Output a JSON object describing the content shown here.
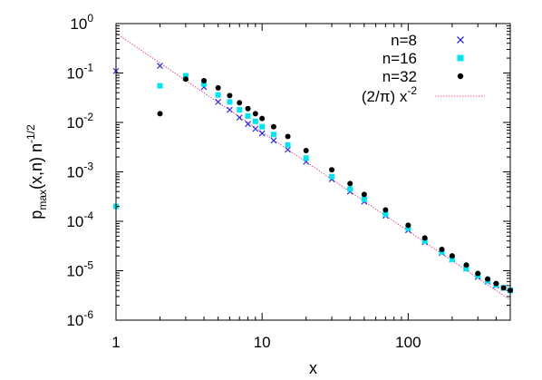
{
  "chart_data": {
    "type": "scatter",
    "xscale": "log",
    "yscale": "log",
    "xlim": [
      1,
      500
    ],
    "ylim": [
      1e-06,
      1
    ],
    "grid": false,
    "legend_position": "top-right",
    "xlabel": "x",
    "ylabel": {
      "prefix": "p",
      "sub": "max",
      "mid": "(x,n) n",
      "sup": "-1/2"
    },
    "x_ticks": [
      {
        "value": 1,
        "label": "1"
      },
      {
        "value": 10,
        "label": "10"
      },
      {
        "value": 100,
        "label": "100"
      }
    ],
    "y_ticks": [
      {
        "value": 1,
        "base": "10",
        "exp": "0"
      },
      {
        "value": 0.1,
        "base": "10",
        "exp": "-1"
      },
      {
        "value": 0.01,
        "base": "10",
        "exp": "-2"
      },
      {
        "value": 0.001,
        "base": "10",
        "exp": "-3"
      },
      {
        "value": 0.0001,
        "base": "10",
        "exp": "-4"
      },
      {
        "value": 1e-05,
        "base": "10",
        "exp": "-5"
      },
      {
        "value": 1e-06,
        "base": "10",
        "exp": "-6"
      }
    ],
    "series": [
      {
        "name": "n=8",
        "marker": "x",
        "color": "#2b2bd6",
        "points": [
          [
            1,
            0.11
          ],
          [
            2,
            0.14
          ],
          [
            3,
            0.08
          ],
          [
            4,
            0.052
          ],
          [
            5,
            0.026
          ],
          [
            6,
            0.018
          ],
          [
            7,
            0.0125
          ],
          [
            8,
            0.0093
          ],
          [
            9,
            0.0074
          ],
          [
            10,
            0.006
          ],
          [
            12,
            0.0043
          ],
          [
            15,
            0.0028
          ],
          [
            20,
            0.0016
          ],
          [
            30,
            0.00071
          ],
          [
            40,
            0.0004
          ],
          [
            50,
            0.00025
          ],
          [
            70,
            0.00013
          ],
          [
            100,
            6.6e-05
          ],
          [
            130,
            3.8e-05
          ],
          [
            170,
            2.3e-05
          ],
          [
            200,
            1.7e-05
          ],
          [
            250,
            1.1e-05
          ],
          [
            300,
            7.5e-06
          ],
          [
            350,
            6e-06
          ],
          [
            400,
            5e-06
          ],
          [
            450,
            4.5e-06
          ],
          [
            500,
            4e-06
          ]
        ]
      },
      {
        "name": "n=16",
        "marker": "square",
        "color": "#00e5ee",
        "points": [
          [
            1,
            0.0002
          ],
          [
            2,
            0.055
          ],
          [
            3,
            0.088
          ],
          [
            4,
            0.06
          ],
          [
            5,
            0.036
          ],
          [
            6,
            0.026
          ],
          [
            7,
            0.018
          ],
          [
            8,
            0.0135
          ],
          [
            9,
            0.0105
          ],
          [
            10,
            0.0082
          ],
          [
            12,
            0.0057
          ],
          [
            15,
            0.0035
          ],
          [
            20,
            0.0019
          ],
          [
            30,
            0.0008
          ],
          [
            40,
            0.00045
          ],
          [
            50,
            0.00028
          ],
          [
            70,
            0.00014
          ],
          [
            100,
            7.2e-05
          ],
          [
            130,
            4e-05
          ],
          [
            170,
            2.4e-05
          ],
          [
            200,
            1.7e-05
          ],
          [
            250,
            1.1e-05
          ],
          [
            300,
            8e-06
          ],
          [
            350,
            6.2e-06
          ],
          [
            400,
            5.2e-06
          ],
          [
            450,
            4.5e-06
          ],
          [
            500,
            4e-06
          ]
        ]
      },
      {
        "name": "n=32",
        "marker": "circle",
        "color": "#000000",
        "points": [
          [
            2,
            0.015
          ],
          [
            3,
            0.075
          ],
          [
            4,
            0.07
          ],
          [
            5,
            0.05
          ],
          [
            6,
            0.035
          ],
          [
            7,
            0.025
          ],
          [
            8,
            0.019
          ],
          [
            9,
            0.015
          ],
          [
            10,
            0.012
          ],
          [
            12,
            0.0082
          ],
          [
            15,
            0.0052
          ],
          [
            20,
            0.0027
          ],
          [
            30,
            0.0011
          ],
          [
            40,
            0.00058
          ],
          [
            50,
            0.00035
          ],
          [
            70,
            0.00017
          ],
          [
            100,
            8.3e-05
          ],
          [
            130,
            4.6e-05
          ],
          [
            170,
            2.7e-05
          ],
          [
            200,
            2e-05
          ],
          [
            250,
            1.3e-05
          ],
          [
            300,
            8.8e-06
          ],
          [
            350,
            6.8e-06
          ],
          [
            400,
            5.5e-06
          ],
          [
            450,
            4.5e-06
          ],
          [
            500,
            4e-06
          ]
        ]
      },
      {
        "name": "(2/π) x-2",
        "label_main": "(2/π) x",
        "label_sup": "-2",
        "marker": "line",
        "color": "#e0208a",
        "coefficient": 0.63662,
        "exponent": -2
      }
    ]
  }
}
